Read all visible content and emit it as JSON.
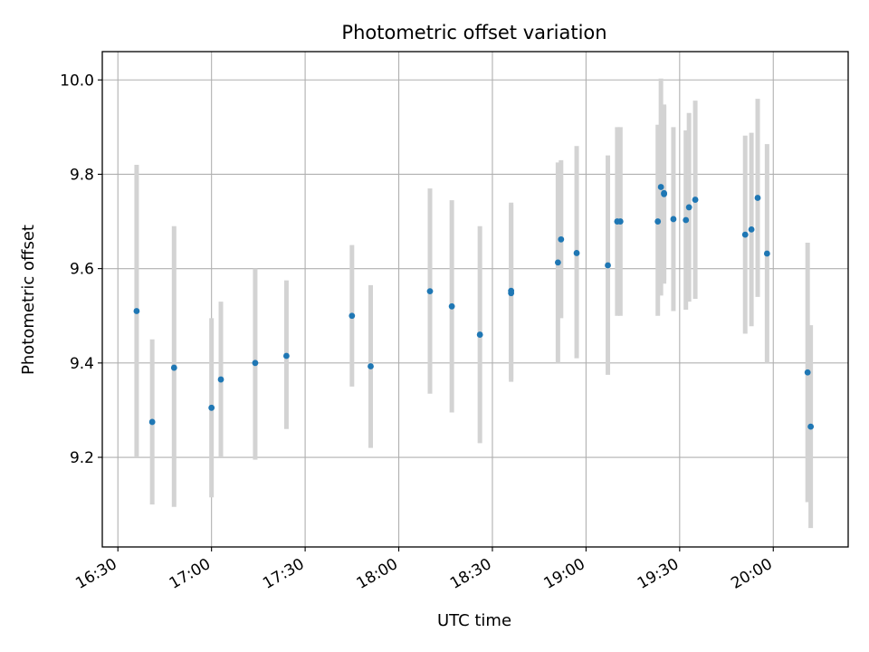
{
  "chart_data": {
    "type": "scatter",
    "title": "Photometric offset variation",
    "xlabel": "UTC time",
    "ylabel": "Photometric offset",
    "x_ticks": [
      "16:30",
      "17:00",
      "17:30",
      "18:00",
      "18:30",
      "19:00",
      "19:30",
      "20:00"
    ],
    "y_ticks": [
      "9.2",
      "9.4",
      "9.6",
      "9.8",
      "10.0"
    ],
    "xlim": [
      "16:25",
      "20:24"
    ],
    "ylim": [
      9.01,
      10.06
    ],
    "grid": true,
    "marker_color": "#1f77b4",
    "errorbar_color": "#d3d3d3",
    "points": [
      {
        "x": "16:36",
        "y": 9.51,
        "lo": 9.2,
        "hi": 9.82
      },
      {
        "x": "16:41",
        "y": 9.275,
        "lo": 9.1,
        "hi": 9.45
      },
      {
        "x": "16:48",
        "y": 9.39,
        "lo": 9.095,
        "hi": 9.69
      },
      {
        "x": "17:00",
        "y": 9.305,
        "lo": 9.115,
        "hi": 9.495
      },
      {
        "x": "17:03",
        "y": 9.365,
        "lo": 9.2,
        "hi": 9.53
      },
      {
        "x": "17:14",
        "y": 9.4,
        "lo": 9.195,
        "hi": 9.6
      },
      {
        "x": "17:24",
        "y": 9.415,
        "lo": 9.26,
        "hi": 9.575
      },
      {
        "x": "17:45",
        "y": 9.5,
        "lo": 9.35,
        "hi": 9.65
      },
      {
        "x": "17:51",
        "y": 9.393,
        "lo": 9.22,
        "hi": 9.565
      },
      {
        "x": "18:10",
        "y": 9.552,
        "lo": 9.335,
        "hi": 9.77
      },
      {
        "x": "18:17",
        "y": 9.52,
        "lo": 9.295,
        "hi": 9.745
      },
      {
        "x": "18:26",
        "y": 9.46,
        "lo": 9.23,
        "hi": 9.69
      },
      {
        "x": "18:36",
        "y": 9.548,
        "lo": 9.36,
        "hi": 9.735
      },
      {
        "x": "18:36",
        "y": 9.553,
        "lo": 9.365,
        "hi": 9.74
      },
      {
        "x": "18:51",
        "y": 9.613,
        "lo": 9.4,
        "hi": 9.825
      },
      {
        "x": "18:52",
        "y": 9.662,
        "lo": 9.495,
        "hi": 9.83
      },
      {
        "x": "18:57",
        "y": 9.633,
        "lo": 9.41,
        "hi": 9.86
      },
      {
        "x": "19:07",
        "y": 9.607,
        "lo": 9.375,
        "hi": 9.84
      },
      {
        "x": "19:10",
        "y": 9.7,
        "lo": 9.5,
        "hi": 9.9
      },
      {
        "x": "19:11",
        "y": 9.7,
        "lo": 9.5,
        "hi": 9.9
      },
      {
        "x": "19:23",
        "y": 9.7,
        "lo": 9.5,
        "hi": 9.905
      },
      {
        "x": "19:24",
        "y": 9.773,
        "lo": 9.543,
        "hi": 10.003
      },
      {
        "x": "19:25",
        "y": 9.76,
        "lo": 9.575,
        "hi": 9.945
      },
      {
        "x": "19:25",
        "y": 9.758,
        "lo": 9.568,
        "hi": 9.948
      },
      {
        "x": "19:28",
        "y": 9.705,
        "lo": 9.51,
        "hi": 9.9
      },
      {
        "x": "19:32",
        "y": 9.703,
        "lo": 9.513,
        "hi": 9.893
      },
      {
        "x": "19:33",
        "y": 9.73,
        "lo": 9.53,
        "hi": 9.93
      },
      {
        "x": "19:35",
        "y": 9.746,
        "lo": 9.536,
        "hi": 9.956
      },
      {
        "x": "19:51",
        "y": 9.672,
        "lo": 9.462,
        "hi": 9.882
      },
      {
        "x": "19:53",
        "y": 9.683,
        "lo": 9.478,
        "hi": 9.888
      },
      {
        "x": "19:55",
        "y": 9.75,
        "lo": 9.54,
        "hi": 9.96
      },
      {
        "x": "19:58",
        "y": 9.632,
        "lo": 9.4,
        "hi": 9.864
      },
      {
        "x": "20:11",
        "y": 9.38,
        "lo": 9.105,
        "hi": 9.655
      },
      {
        "x": "20:12",
        "y": 9.265,
        "lo": 9.05,
        "hi": 9.48
      }
    ]
  }
}
